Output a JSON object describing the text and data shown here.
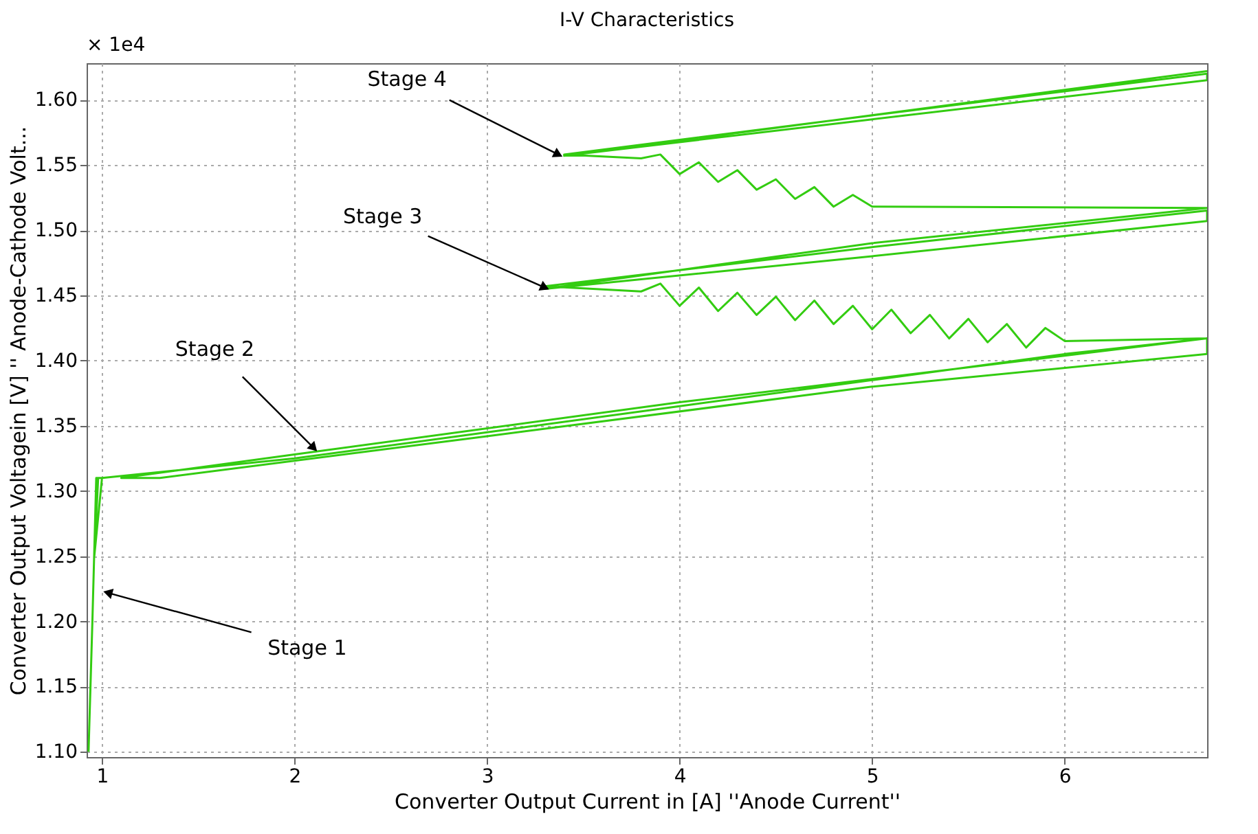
{
  "chart_data": {
    "type": "line",
    "title": "I-V Characteristics",
    "xlabel": "Converter Output Current in [A] ''Anode Current''",
    "ylabel": "Converter Output Voltagein [V] '' Anode-Cathode Volt...",
    "xlim": [
      0.92,
      6.74
    ],
    "ylim": [
      1.096,
      1.628
    ],
    "xticks": [
      1,
      2,
      3,
      4,
      5,
      6
    ],
    "yticks": [
      {
        "value": 1.1,
        "label": "1.10"
      },
      {
        "value": 1.15,
        "label": "1.15"
      },
      {
        "value": 1.2,
        "label": "1.20"
      },
      {
        "value": 1.25,
        "label": "1.25"
      },
      {
        "value": 1.3,
        "label": "1.30"
      },
      {
        "value": 1.35,
        "label": "1.35"
      },
      {
        "value": 1.4,
        "label": "1.40"
      },
      {
        "value": 1.45,
        "label": "1.45"
      },
      {
        "value": 1.5,
        "label": "1.50"
      },
      {
        "value": 1.55,
        "label": "1.55"
      },
      {
        "value": 1.6,
        "label": "1.60"
      }
    ],
    "grid": true,
    "line_style": "solid",
    "marker": "none",
    "series": [
      {
        "color": "#33cc11",
        "x": [
          0.93,
          0.95,
          0.97,
          1.0,
          0.96,
          0.98,
          1.0,
          2.0,
          3.0,
          4.0,
          5.0,
          6.0,
          6.74,
          6.74,
          5.0,
          3.0,
          1.3,
          1.1,
          2.0,
          4.0,
          6.74,
          6.0,
          5.9,
          5.8,
          5.7,
          5.6,
          5.5,
          5.4,
          5.3,
          5.2,
          5.1,
          5.0,
          4.9,
          4.8,
          4.7,
          4.6,
          4.5,
          4.4,
          4.3,
          4.2,
          4.1,
          4.0,
          3.9,
          3.8,
          3.3,
          5.0,
          6.74,
          6.74,
          5.0,
          3.3,
          5.0,
          6.74,
          5.0,
          4.9,
          4.8,
          4.7,
          4.6,
          4.5,
          4.4,
          4.3,
          4.2,
          4.1,
          4.0,
          3.9,
          3.8,
          3.4,
          5.0,
          6.74,
          6.74,
          5.0,
          3.4,
          6.74
        ],
        "values": [
          1.1,
          1.2,
          1.31,
          1.31,
          1.25,
          1.31,
          1.31,
          1.325,
          1.345,
          1.365,
          1.385,
          1.405,
          1.417,
          1.405,
          1.38,
          1.342,
          1.31,
          1.31,
          1.328,
          1.368,
          1.417,
          1.415,
          1.425,
          1.41,
          1.428,
          1.414,
          1.432,
          1.417,
          1.435,
          1.421,
          1.439,
          1.424,
          1.442,
          1.428,
          1.446,
          1.431,
          1.449,
          1.435,
          1.452,
          1.438,
          1.456,
          1.442,
          1.459,
          1.453,
          1.457,
          1.487,
          1.515,
          1.507,
          1.48,
          1.455,
          1.49,
          1.517,
          1.518,
          1.527,
          1.518,
          1.533,
          1.524,
          1.539,
          1.531,
          1.546,
          1.537,
          1.552,
          1.543,
          1.558,
          1.555,
          1.558,
          1.588,
          1.62,
          1.615,
          1.585,
          1.557,
          1.622
        ]
      }
    ],
    "annotations": [
      "× 1e4",
      {
        "text": "Stage 1",
        "x": 1.03,
        "y": 1.222
      },
      {
        "text": "Stage 2",
        "x": 2.1,
        "y": 1.333
      },
      {
        "text": "Stage 3",
        "x": 3.3,
        "y": 1.456
      },
      {
        "text": "Stage 4",
        "x": 3.37,
        "y": 1.558
      }
    ]
  }
}
